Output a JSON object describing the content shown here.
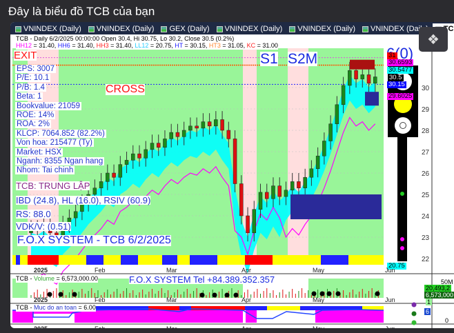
{
  "page_title": "Đây là biểu đồ TCB của bạn",
  "tabs": [
    {
      "label": "VNINDEX (Daily)"
    },
    {
      "label": "VNINDEX (Daily)"
    },
    {
      "label": "GEX (Daily)"
    },
    {
      "label": "VNINDEX (Daily)"
    },
    {
      "label": "VNINDEX (Daily)"
    },
    {
      "label": "VNINDEX (Daily)"
    },
    {
      "label": "TCB (Daily)",
      "active": true
    }
  ],
  "header": {
    "line1": "TCB - Daily 6/2/2025 00:00:00 Open 30.4, Hi 30.75, Lo 30.2, Close 30.5 (0.2%)",
    "hh12": "HH12",
    "hh12_v": " = 31.40, ",
    "hh6": "HH6",
    "hh6_v": " = 31.40, ",
    "hh3": "HH3",
    "hh3_v": " = 31.40, ",
    "ll12": "LL12",
    "ll12_v": " = 20.75, ",
    "ht": "HT",
    "ht_v": "  = 30.15, ",
    "ht3": "HT3",
    "ht3_v": "  = 31.05, ",
    "kc": "KC",
    "kc_v": " = 31.00"
  },
  "overlay": {
    "exit": "EXIT",
    "cross": "CROSS",
    "s1": "S1",
    "s2m": "S2M",
    "signal": "6(0)",
    "fundamentals": [
      "EPS: 3007",
      "P/E: 10.1",
      "P/B: 1.4",
      "Beta: 1",
      "Bookvalue: 21059",
      "ROE: 14%",
      "ROA: 2%",
      "KLCP: 7064.852 (82.2%)",
      "Von hoa: 215477 (Ty)",
      "Market: HSX",
      "Nganh: 8355 Ngan hang",
      "Nhom: Tai chinh"
    ],
    "status": "TCB: TRUNG LẬP",
    "ibd": "IBD (24.8), HL (16.0), RSIV (60.9)",
    "rs": "RS: 88.0",
    "vdk": "VDK/V:  (0.51)",
    "brand": "F.O.X SYSTEM - TCB 6/2/2025"
  },
  "price_tags": [
    {
      "text": "31",
      "bg": "#ff0000",
      "fg": "#000"
    },
    {
      "text": "30.6593",
      "bg": "#ff00ff",
      "fg": "#000"
    },
    {
      "text": "30.5477",
      "bg": "#00ffff",
      "fg": "#000"
    },
    {
      "text": "30.5",
      "bg": "#000000",
      "fg": "#fff"
    },
    {
      "text": "30.15",
      "bg": "#0000ff",
      "fg": "#fff"
    },
    {
      "text": "29.6025",
      "bg": "#ff00ff",
      "fg": "#000"
    },
    {
      "text": "20.75",
      "bg": "#00ffff",
      "fg": "#000"
    }
  ],
  "x_axis": [
    "2025",
    "Feb",
    "Mar",
    "Apr",
    "May",
    "Jun"
  ],
  "volume": {
    "header_ticker": "TCB - ",
    "header_name": "Volume",
    "header_value": " = 6,573,000.00",
    "banner": "F.O.X SYSTEM Tel +84.389.352.357",
    "scale": "50M",
    "tag1": "20,493,2",
    "tag2": "6,573,000",
    "tag3": "1"
  },
  "safety": {
    "header_ticker": "TCB - ",
    "header_name": "Muc do an toan",
    "header_value": " = 6.00",
    "tag": "6",
    "zero": "0"
  },
  "colors": {
    "green_zone": "#99f599",
    "pink_zone": "#ffdede",
    "up": "#1a8a1a",
    "down": "#dd1111",
    "cyan": "#00ffff",
    "magenta": "#ff00ff",
    "blue_text": "#2233cc"
  },
  "chart_data": {
    "type": "candlestick",
    "ticker": "TCB",
    "y_ticks": [
      22,
      23,
      24,
      25,
      26,
      27,
      28,
      29,
      30
    ],
    "ylim": [
      21.5,
      31.8
    ],
    "x_ticks": [
      "2025",
      "Feb",
      "Mar",
      "Apr",
      "May",
      "Jun"
    ],
    "closes": [
      23.4,
      23.3,
      23.5,
      23.2,
      23.0,
      23.6,
      23.9,
      24.2,
      24.6,
      25.0,
      25.3,
      25.6,
      26.0,
      25.8,
      26.4,
      26.6,
      26.9,
      26.7,
      27.1,
      27.4,
      27.2,
      27.6,
      27.9,
      27.7,
      28.0,
      28.2,
      28.1,
      28.4,
      28.2,
      28.5,
      28.0,
      27.6,
      25.5,
      24.0,
      23.2,
      24.3,
      25.1,
      24.8,
      25.4,
      24.9,
      25.2,
      25.6,
      25.3,
      25.8,
      26.2,
      26.8,
      27.5,
      28.3,
      29.2,
      30.1,
      30.8,
      30.4,
      30.6,
      30.2,
      30.5
    ],
    "last": {
      "open": 30.4,
      "high": 30.75,
      "low": 30.2,
      "close": 30.5,
      "change_pct": 0.2
    }
  }
}
